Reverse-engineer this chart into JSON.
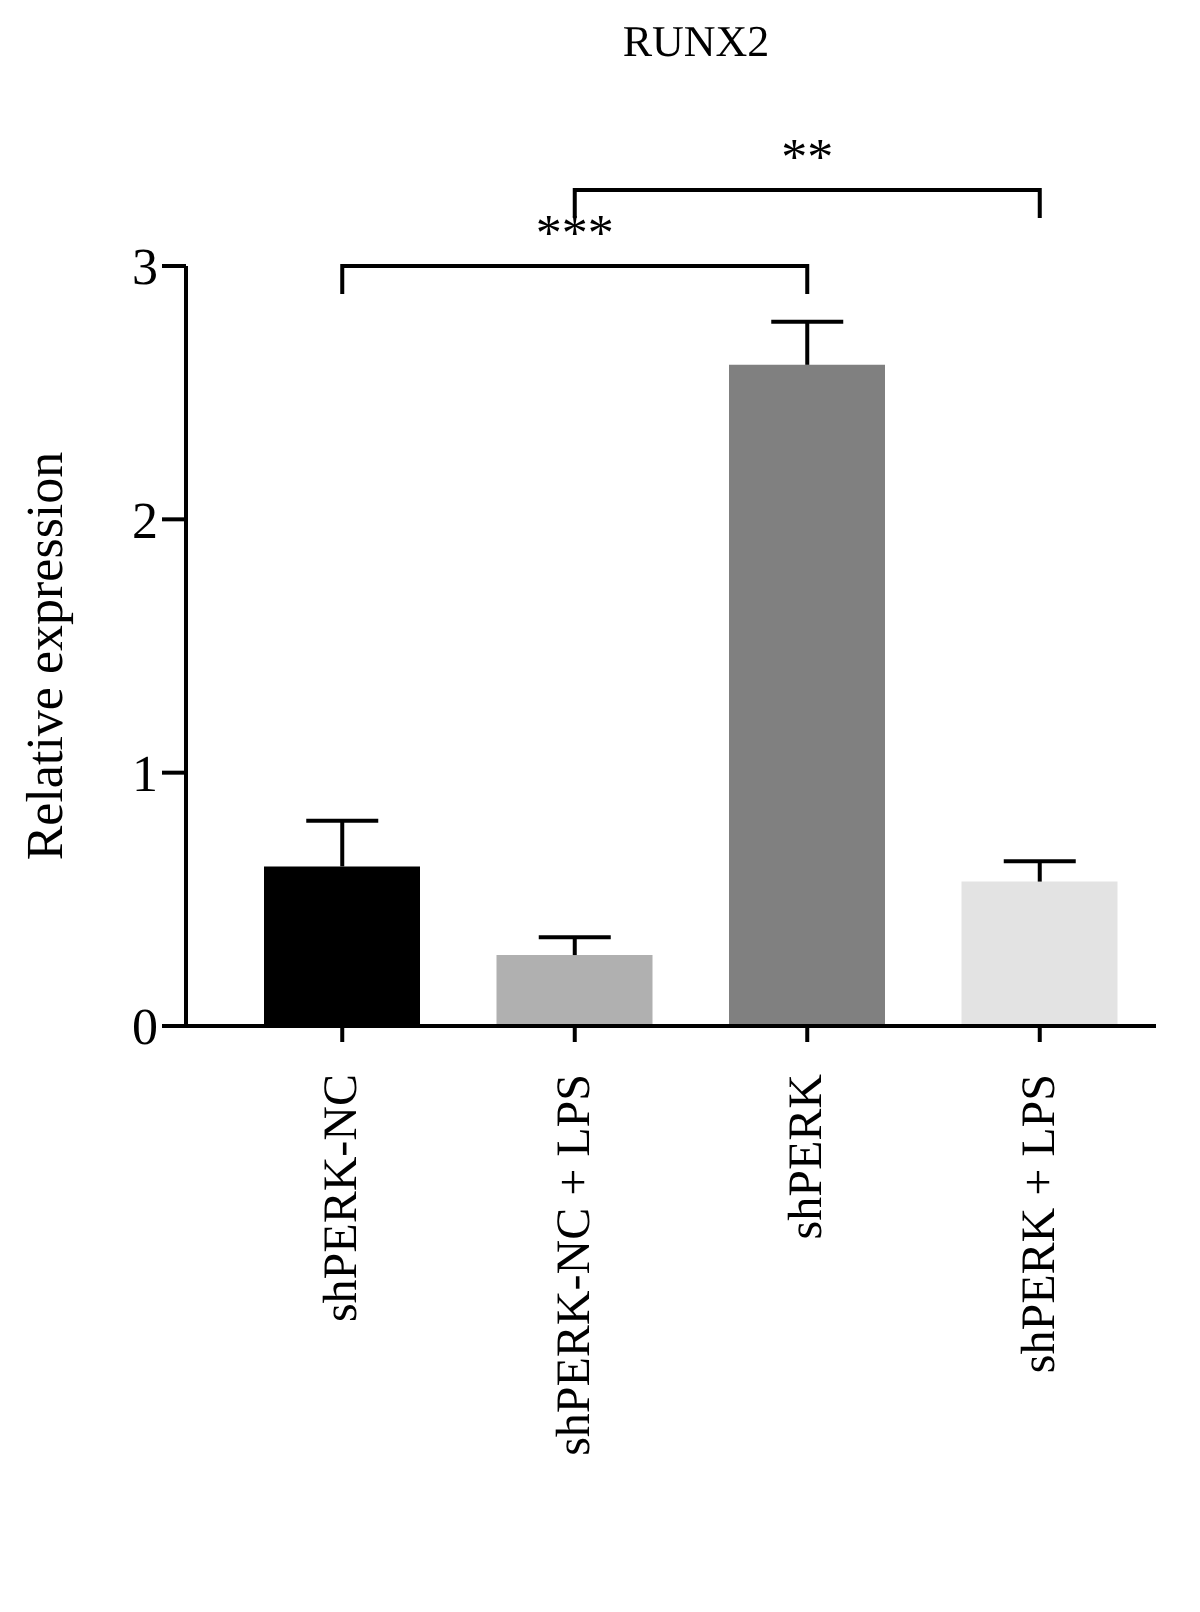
{
  "chart_data": {
    "type": "bar",
    "title": "RUNX2",
    "ylabel": "Relative expression",
    "categories": [
      "shPERK-NC",
      "shPERK-NC + LPS",
      "shPERK",
      "shPERK + LPS"
    ],
    "values": [
      0.63,
      0.28,
      2.61,
      0.57
    ],
    "colors": [
      "#000000",
      "#b0b0b0",
      "#808080",
      "#e3e3e3"
    ],
    "errors": [
      [
        0.63,
        0.81
      ],
      [
        0.28,
        0.35
      ],
      [
        2.61,
        2.78
      ],
      [
        0.57,
        0.65
      ]
    ],
    "ylim": [
      0,
      3
    ],
    "yticks": [
      0,
      1,
      2,
      3
    ],
    "annotations": [
      "***",
      "**"
    ]
  }
}
